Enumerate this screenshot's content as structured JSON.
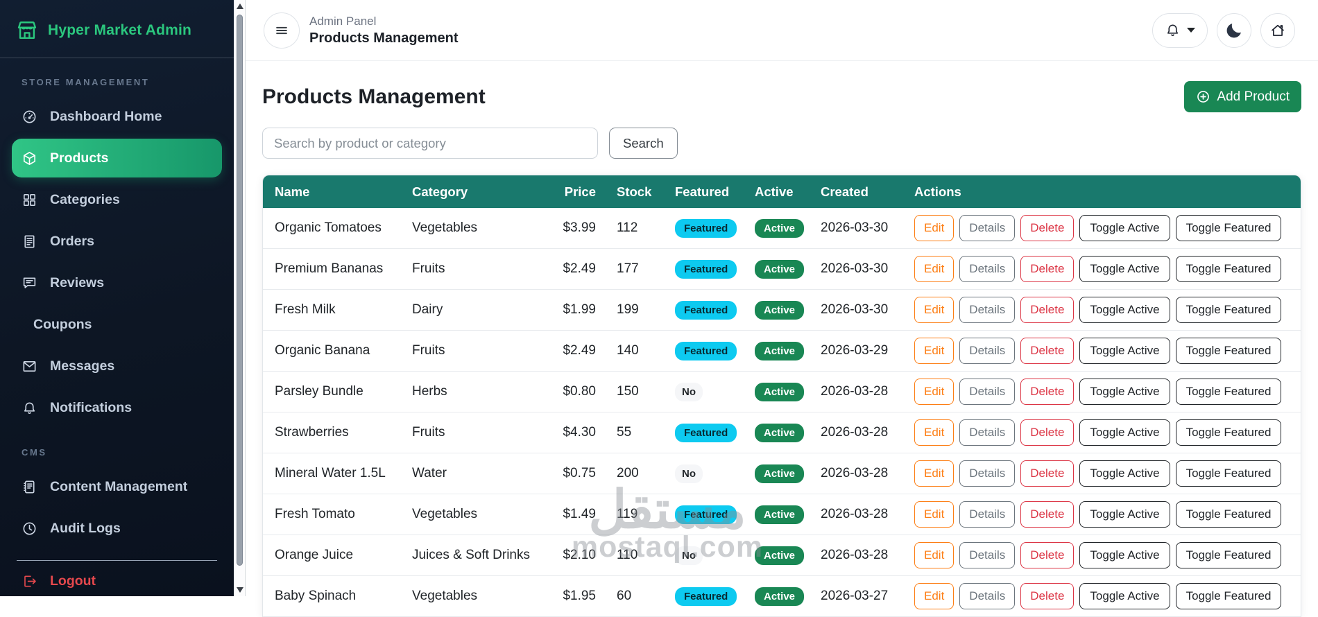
{
  "sidebar": {
    "brand": {
      "label": "Hyper Market Admin",
      "icon": "shop-icon"
    },
    "sections": [
      {
        "label": "STORE MANAGEMENT",
        "items": [
          {
            "label": "Dashboard Home",
            "icon": "gauge",
            "active": false
          },
          {
            "label": "Products",
            "icon": "cube",
            "active": true
          },
          {
            "label": "Categories",
            "icon": "grid",
            "active": false
          },
          {
            "label": "Orders",
            "icon": "receipt",
            "active": false
          },
          {
            "label": "Reviews",
            "icon": "chat",
            "active": false
          },
          {
            "label": "Coupons",
            "icon": null,
            "active": false
          },
          {
            "label": "Messages",
            "icon": "envelope",
            "active": false
          },
          {
            "label": "Notifications",
            "icon": "bell",
            "active": false
          }
        ]
      },
      {
        "label": "CMS",
        "items": [
          {
            "label": "Content Management",
            "icon": "journal",
            "active": false
          },
          {
            "label": "Audit Logs",
            "icon": "clock",
            "active": false
          }
        ]
      }
    ],
    "logout": {
      "label": "Logout",
      "icon": "logout"
    }
  },
  "topbar": {
    "breadcrumb": "Admin Panel",
    "title": "Products Management"
  },
  "page": {
    "heading": "Products Management",
    "add_button": "Add Product"
  },
  "search": {
    "placeholder": "Search by product or category",
    "button": "Search"
  },
  "table": {
    "columns": [
      "Name",
      "Category",
      "Price",
      "Stock",
      "Featured",
      "Active",
      "Created",
      "Actions"
    ],
    "badges": {
      "featured": "Featured",
      "not_featured": "No",
      "active": "Active"
    },
    "actions": [
      "Edit",
      "Details",
      "Delete",
      "Toggle Active",
      "Toggle Featured"
    ],
    "rows": [
      {
        "name": "Organic Tomatoes",
        "category": "Vegetables",
        "price": "$3.99",
        "stock": "112",
        "featured": true,
        "active": true,
        "created": "2026-03-30"
      },
      {
        "name": "Premium Bananas",
        "category": "Fruits",
        "price": "$2.49",
        "stock": "177",
        "featured": true,
        "active": true,
        "created": "2026-03-30"
      },
      {
        "name": "Fresh Milk",
        "category": "Dairy",
        "price": "$1.99",
        "stock": "199",
        "featured": true,
        "active": true,
        "created": "2026-03-30"
      },
      {
        "name": "Organic Banana",
        "category": "Fruits",
        "price": "$2.49",
        "stock": "140",
        "featured": true,
        "active": true,
        "created": "2026-03-29"
      },
      {
        "name": "Parsley Bundle",
        "category": "Herbs",
        "price": "$0.80",
        "stock": "150",
        "featured": false,
        "active": true,
        "created": "2026-03-28"
      },
      {
        "name": "Strawberries",
        "category": "Fruits",
        "price": "$4.30",
        "stock": "55",
        "featured": true,
        "active": true,
        "created": "2026-03-28"
      },
      {
        "name": "Mineral Water 1.5L",
        "category": "Water",
        "price": "$0.75",
        "stock": "200",
        "featured": false,
        "active": true,
        "created": "2026-03-28"
      },
      {
        "name": "Fresh Tomato",
        "category": "Vegetables",
        "price": "$1.49",
        "stock": "119",
        "featured": true,
        "active": true,
        "created": "2026-03-28"
      },
      {
        "name": "Orange Juice",
        "category": "Juices & Soft Drinks",
        "price": "$2.10",
        "stock": "110",
        "featured": false,
        "active": true,
        "created": "2026-03-28"
      },
      {
        "name": "Baby Spinach",
        "category": "Vegetables",
        "price": "$1.95",
        "stock": "60",
        "featured": true,
        "active": true,
        "created": "2026-03-27"
      }
    ]
  },
  "watermark": {
    "arabic": "مستقل",
    "latin": "mostaql.com"
  },
  "colors": {
    "accent_green": "#2bc77e",
    "active_gradient_start": "#30c586",
    "active_gradient_end": "#17976a",
    "table_header": "#19796d",
    "success": "#198754",
    "info": "#0dcaf0",
    "danger": "#dc3545",
    "warning": "#fd7e14",
    "logout_red": "#e5484d"
  }
}
